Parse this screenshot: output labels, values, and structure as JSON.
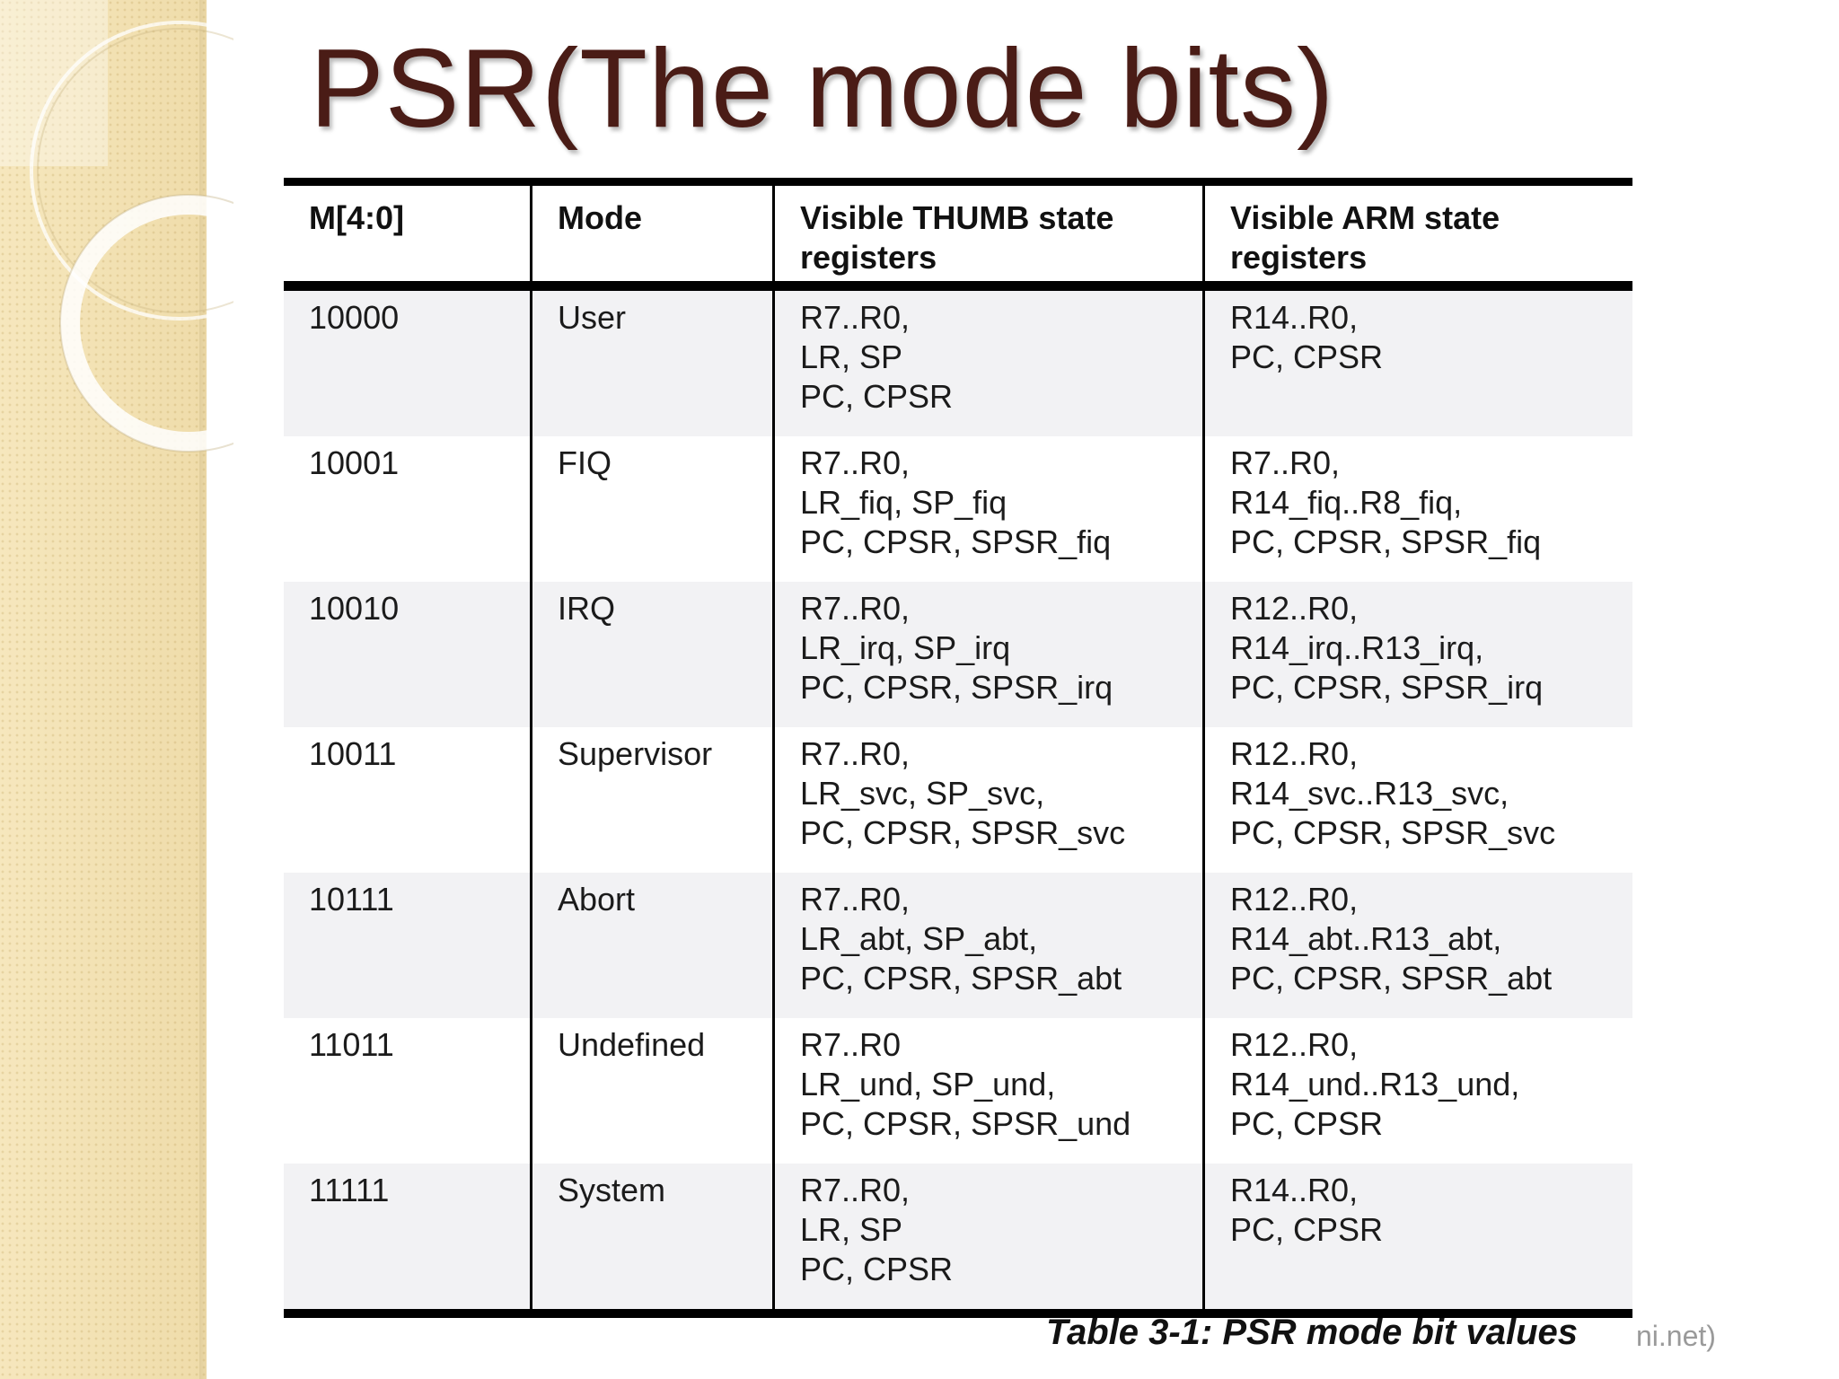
{
  "slide": {
    "title": "PSR(The mode bits)",
    "caption": "Table 3-1: PSR mode bit values",
    "source_fragment": "ni.net)"
  },
  "colors": {
    "title": "#4a1c16",
    "sidebar": "#f3e2b3",
    "row_shade": "#f2f2f4"
  },
  "table": {
    "headers": [
      "M[4:0]",
      "Mode",
      "Visible THUMB state\nregisters",
      "Visible ARM state\nregisters"
    ],
    "rows": [
      [
        "10000",
        "User",
        "R7..R0,\nLR, SP\nPC, CPSR",
        "R14..R0,\nPC, CPSR"
      ],
      [
        "10001",
        "FIQ",
        "R7..R0,\nLR_fiq, SP_fiq\nPC, CPSR, SPSR_fiq",
        "R7..R0,\nR14_fiq..R8_fiq,\nPC, CPSR, SPSR_fiq"
      ],
      [
        "10010",
        "IRQ",
        "R7..R0,\nLR_irq, SP_irq\nPC, CPSR, SPSR_irq",
        "R12..R0,\nR14_irq..R13_irq,\nPC, CPSR, SPSR_irq"
      ],
      [
        "10011",
        "Supervisor",
        "R7..R0,\nLR_svc, SP_svc,\nPC, CPSR, SPSR_svc",
        "R12..R0,\nR14_svc..R13_svc,\nPC, CPSR, SPSR_svc"
      ],
      [
        "10111",
        "Abort",
        "R7..R0,\nLR_abt, SP_abt,\nPC, CPSR, SPSR_abt",
        "R12..R0,\nR14_abt..R13_abt,\nPC, CPSR, SPSR_abt"
      ],
      [
        "11011",
        "Undefined",
        "R7..R0\nLR_und, SP_und,\nPC, CPSR, SPSR_und",
        "R12..R0,\nR14_und..R13_und,\nPC, CPSR"
      ],
      [
        "11111",
        "System",
        "R7..R0,\nLR, SP\nPC, CPSR",
        "R14..R0,\nPC, CPSR"
      ]
    ]
  }
}
